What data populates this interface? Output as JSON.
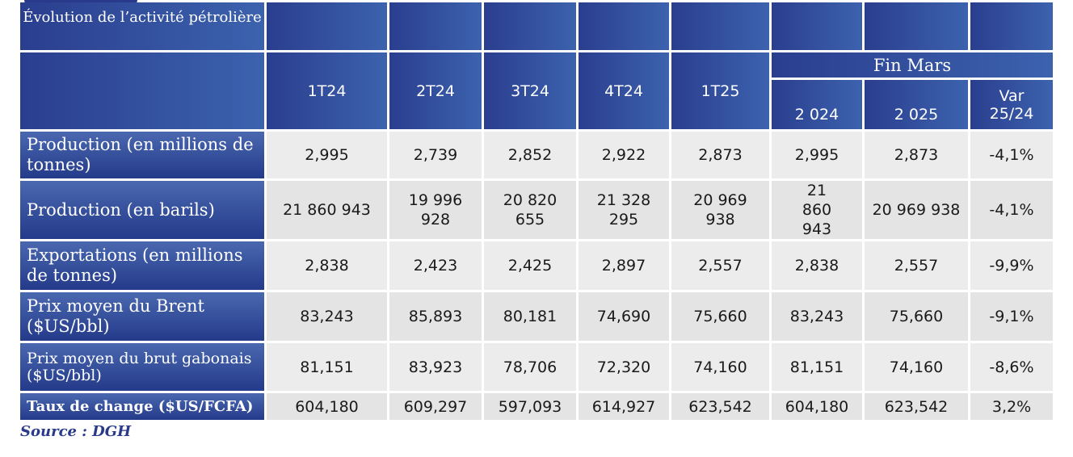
{
  "table": {
    "title": "Évolution de l’activité pétrolière",
    "periods": [
      "1T24",
      "2T24",
      "3T24",
      "4T24",
      "1T25"
    ],
    "fin_mars": {
      "label": "Fin Mars",
      "col_2024": "2 024",
      "col_2025": "2 025",
      "var_line1": "Var",
      "var_line2": "25/24"
    },
    "rows": [
      {
        "label": "Production (en millions de tonnes)",
        "values": [
          "2,995",
          "2,739",
          "2,852",
          "2,922",
          "2,873",
          "2,995",
          "2,873",
          "-4,1%"
        ]
      },
      {
        "label": "Production (en barils)",
        "values": [
          "21 860 943",
          "19 996 928",
          "20 820 655",
          "21 328 295",
          "20 969 938",
          "21 860 943",
          "20 969 938",
          "-4,1%"
        ]
      },
      {
        "label": "Exportations (en millions de tonnes)",
        "values": [
          "2,838",
          "2,423",
          "2,425",
          "2,897",
          "2,557",
          "2,838",
          "2,557",
          "-9,9%"
        ]
      },
      {
        "label": "Prix moyen du Brent ($US/bbl)",
        "values": [
          "83,243",
          "85,893",
          "80,181",
          "74,690",
          "75,660",
          "83,243",
          "75,660",
          "-9,1%"
        ]
      },
      {
        "label": "Prix moyen du brut gabonais ($US/bbl)",
        "values": [
          "81,151",
          "83,923",
          "78,706",
          "72,320",
          "74,160",
          "81,151",
          "74,160",
          "-8,6%"
        ]
      },
      {
        "label": "Taux de change ($US/FCFA)",
        "values": [
          "604,180",
          "609,297",
          "597,093",
          "614,927",
          "623,542",
          "604,180",
          "623,542",
          "3,2%"
        ]
      }
    ]
  },
  "source": "Source : DGH"
}
